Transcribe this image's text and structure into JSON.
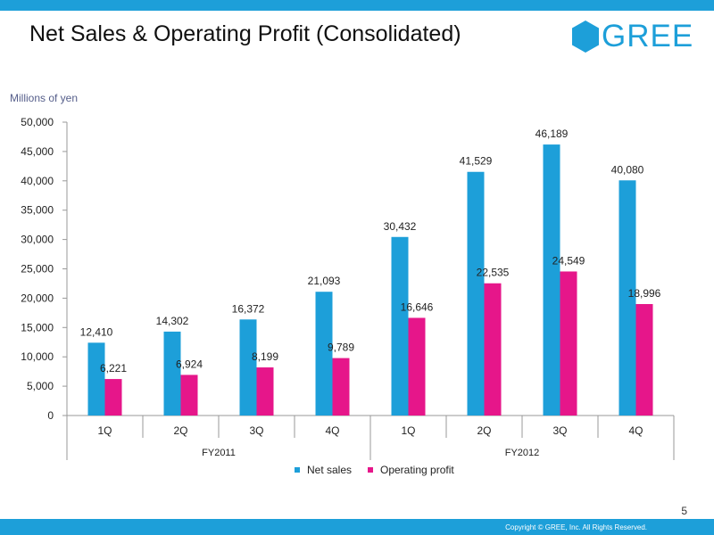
{
  "page": {
    "title": "Net Sales & Operating Profit (Consolidated)",
    "logo_text": "GREE",
    "page_number": "5",
    "copyright": "Copyright © GREE, Inc. All Rights Reserved.",
    "brand_color": "#1d9fd9"
  },
  "chart_data": {
    "type": "bar",
    "ylabel": "Millions of yen",
    "ylim": [
      0,
      50000
    ],
    "yticks": [
      0,
      5000,
      10000,
      15000,
      20000,
      25000,
      30000,
      35000,
      40000,
      45000,
      50000
    ],
    "ytick_labels": [
      "0",
      "5,000",
      "10,000",
      "15,000",
      "20,000",
      "25,000",
      "30,000",
      "35,000",
      "40,000",
      "45,000",
      "50,000"
    ],
    "categories": [
      "1Q",
      "2Q",
      "3Q",
      "4Q",
      "1Q",
      "2Q",
      "3Q",
      "4Q"
    ],
    "groups": [
      {
        "label": "FY2011",
        "count": 4
      },
      {
        "label": "FY2012",
        "count": 4
      }
    ],
    "series": [
      {
        "name": "Net sales",
        "color": "#1d9fd9",
        "values": [
          12410,
          14302,
          16372,
          21093,
          30432,
          41529,
          46189,
          40080
        ],
        "labels": [
          "12,410",
          "14,302",
          "16,372",
          "21,093",
          "30,432",
          "41,529",
          "46,189",
          "40,080"
        ]
      },
      {
        "name": "Operating profit",
        "color": "#e6168a",
        "values": [
          6221,
          6924,
          8199,
          9789,
          16646,
          22535,
          24549,
          18996
        ],
        "labels": [
          "6,221",
          "6,924",
          "8,199",
          "9,789",
          "16,646",
          "22,535",
          "24,549",
          "18,996"
        ]
      }
    ],
    "legend_position": "bottom-center",
    "grid": false
  }
}
